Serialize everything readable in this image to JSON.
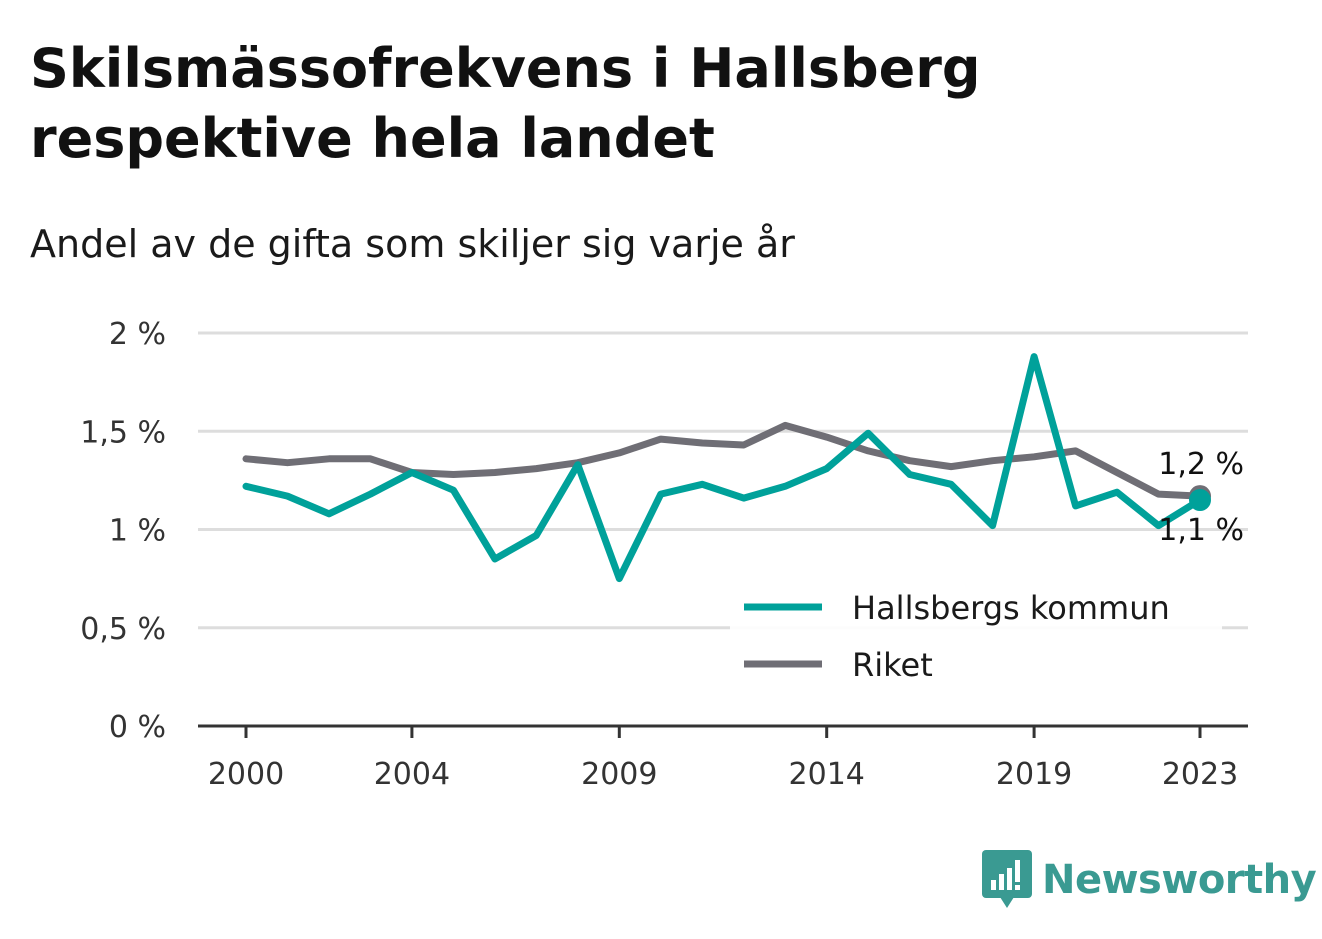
{
  "chart_data": {
    "type": "line",
    "title": "Skilsmässofrekvens i Hallsberg respektive hela landet",
    "subtitle": "Andel av de gifta som skiljer sig varje år",
    "xlabel": "",
    "ylabel": "",
    "x": [
      2000,
      2001,
      2002,
      2003,
      2004,
      2005,
      2006,
      2007,
      2008,
      2009,
      2010,
      2011,
      2012,
      2013,
      2014,
      2015,
      2016,
      2017,
      2018,
      2019,
      2020,
      2021,
      2022,
      2023
    ],
    "x_ticks": [
      2000,
      2004,
      2009,
      2014,
      2019,
      2023
    ],
    "x_tick_labels": [
      "2000",
      "2004",
      "2009",
      "2014",
      "2019",
      "2023"
    ],
    "ylim": [
      0,
      2
    ],
    "y_ticks": [
      0,
      0.5,
      1,
      1.5,
      2
    ],
    "y_tick_labels": [
      "0 %",
      "0,5 %",
      "1 %",
      "1,5 %",
      "2 %"
    ],
    "grid": true,
    "legend_position": "bottom-right",
    "series": [
      {
        "name": "Hallsbergs kommun",
        "color": "#00a19a",
        "values": [
          1.22,
          1.17,
          1.08,
          1.18,
          1.29,
          1.2,
          0.85,
          0.97,
          1.33,
          0.75,
          1.18,
          1.23,
          1.16,
          1.22,
          1.31,
          1.49,
          1.28,
          1.23,
          1.02,
          1.88,
          1.12,
          1.19,
          1.02,
          1.15
        ],
        "end_label": "1,1 %"
      },
      {
        "name": "Riket",
        "color": "#6f6e75",
        "values": [
          1.36,
          1.34,
          1.36,
          1.36,
          1.29,
          1.28,
          1.29,
          1.31,
          1.34,
          1.39,
          1.46,
          1.44,
          1.43,
          1.53,
          1.47,
          1.4,
          1.35,
          1.32,
          1.35,
          1.37,
          1.4,
          1.29,
          1.18,
          1.17
        ],
        "end_label": "1,2 %"
      }
    ]
  },
  "branding": {
    "logo_text": "Newsworthy",
    "logo_icon": "bar-chart-speech-bubble-icon",
    "logo_color": "#3a9a92"
  }
}
